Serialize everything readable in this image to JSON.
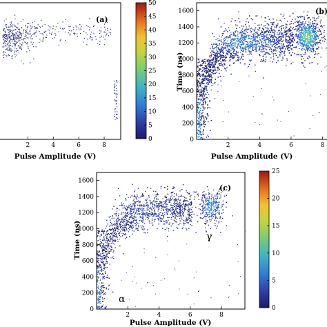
{
  "chart_data": [
    {
      "type": "scatter",
      "panel_label": "(a)",
      "xlabel": "Pulse Amplitude (V)",
      "ylabel": "",
      "xlim": [
        0,
        9
      ],
      "ylim": [
        0,
        1700
      ],
      "xticks": [
        "2",
        "4",
        "6",
        "8"
      ],
      "yticks": [],
      "colorbar": {
        "min": 0,
        "max": 50,
        "ticks": [
          "0",
          "5",
          "10",
          "15",
          "20",
          "25",
          "30",
          "35",
          "40",
          "45",
          "50"
        ]
      },
      "clusters": [
        {
          "name": "main",
          "x_range": [
            0,
            8.5
          ],
          "y_center": 1300,
          "y_spread": 120,
          "density": "sparse"
        },
        {
          "name": "right-edge",
          "x_range": [
            8.8,
            9.0
          ],
          "y_range": [
            200,
            700
          ],
          "density": "very sparse"
        }
      ],
      "annotations": []
    },
    {
      "type": "scatter",
      "panel_label": "(b)",
      "xlabel": "Pulse Amplitude (V)",
      "ylabel": "Time (ns)",
      "xlim": [
        0,
        8
      ],
      "ylim": [
        0,
        1700
      ],
      "xticks": [
        "2",
        "4",
        "6",
        "8"
      ],
      "yticks": [
        "0",
        "200",
        "400",
        "600",
        "800",
        "1000",
        "1200",
        "1400",
        "1600"
      ],
      "clusters": [
        {
          "name": "alpha-band",
          "x_range": [
            0,
            6
          ],
          "y_range": [
            0,
            1450
          ],
          "peak": [
            3.5,
            1250
          ]
        },
        {
          "name": "gamma-blob",
          "center": [
            7.0,
            1280
          ],
          "spread": [
            0.5,
            130
          ],
          "peak_color": "#7ad36a"
        }
      ],
      "annotations": []
    },
    {
      "type": "scatter",
      "panel_label": "(c)",
      "xlabel": "Pulse Amplitude (V)",
      "ylabel": "Time (ns)",
      "xlim": [
        0,
        9.5
      ],
      "ylim": [
        0,
        1700
      ],
      "xticks": [
        "2",
        "4",
        "6",
        "8"
      ],
      "yticks": [
        "0",
        "200",
        "400",
        "600",
        "800",
        "1000",
        "1200",
        "1400",
        "1600"
      ],
      "colorbar": {
        "min": 0,
        "max": 25,
        "ticks": [
          "0",
          "5",
          "10",
          "15",
          "20",
          "25"
        ]
      },
      "clusters": [
        {
          "name": "alpha-band",
          "x_range": [
            0,
            6
          ],
          "y_range": [
            0,
            1450
          ],
          "peak": [
            3.5,
            1250
          ]
        },
        {
          "name": "gamma-blob",
          "center": [
            7.3,
            1280
          ],
          "spread": [
            0.45,
            120
          ],
          "peak_color": "#2a7bd8"
        }
      ],
      "annotations": [
        "α",
        "γ"
      ]
    }
  ],
  "colors": {
    "low": "#1c1a6b",
    "mid": "#3fb4c4",
    "high": "#a31515"
  }
}
